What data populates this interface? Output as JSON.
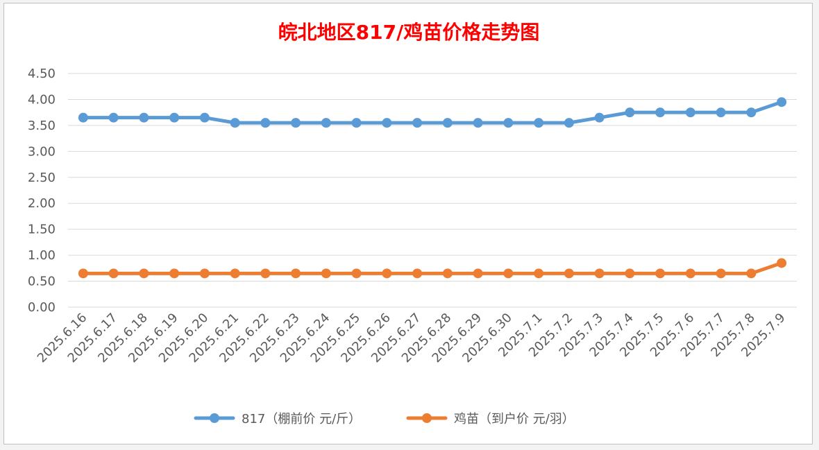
{
  "chart_data": {
    "type": "line",
    "title": "皖北地区817/鸡苗价格走势图",
    "title_color": "#ff0000",
    "xlabel": "",
    "ylabel": "",
    "ylim": [
      0,
      4.5
    ],
    "y_ticks": [
      "0.00",
      "0.50",
      "1.00",
      "1.50",
      "2.00",
      "2.50",
      "3.00",
      "3.50",
      "4.00",
      "4.50"
    ],
    "grid": true,
    "legend_position": "bottom",
    "categories": [
      "2025.6.16",
      "2025.6.17",
      "2025.6.18",
      "2025.6.19",
      "2025.6.20",
      "2025.6.21",
      "2025.6.22",
      "2025.6.23",
      "2025.6.24",
      "2025.6.25",
      "2025.6.26",
      "2025.6.27",
      "2025.6.28",
      "2025.6.29",
      "2025.6.30",
      "2025.7.1",
      "2025.7.2",
      "2025.7.3",
      "2025.7.4",
      "2025.7.5",
      "2025.7.6",
      "2025.7.7",
      "2025.7.8",
      "2025.7.9"
    ],
    "series": [
      {
        "name": "817（棚前价 元/斤）",
        "color": "#5b9bd5",
        "values": [
          3.65,
          3.65,
          3.65,
          3.65,
          3.65,
          3.55,
          3.55,
          3.55,
          3.55,
          3.55,
          3.55,
          3.55,
          3.55,
          3.55,
          3.55,
          3.55,
          3.55,
          3.65,
          3.75,
          3.75,
          3.75,
          3.75,
          3.75,
          3.95
        ]
      },
      {
        "name": "鸡苗（到户价 元/羽）",
        "color": "#ed7d31",
        "values": [
          0.65,
          0.65,
          0.65,
          0.65,
          0.65,
          0.65,
          0.65,
          0.65,
          0.65,
          0.65,
          0.65,
          0.65,
          0.65,
          0.65,
          0.65,
          0.65,
          0.65,
          0.65,
          0.65,
          0.65,
          0.65,
          0.65,
          0.65,
          0.85
        ]
      }
    ]
  }
}
